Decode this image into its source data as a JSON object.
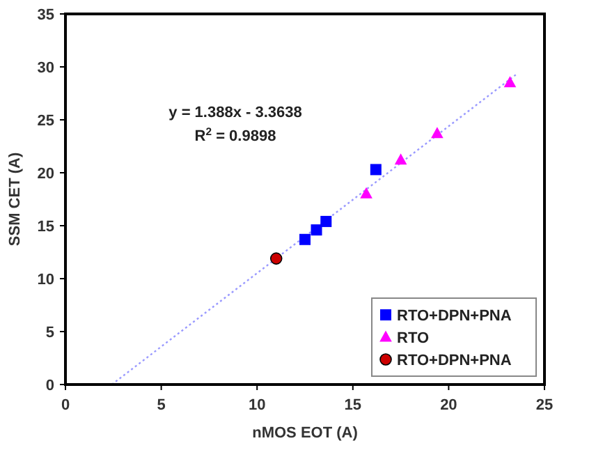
{
  "chart_data": {
    "type": "scatter",
    "xlabel": "nMOS EOT (A)",
    "ylabel": "SSM CET (A)",
    "xlim": [
      0,
      25
    ],
    "xticks": [
      0,
      5,
      10,
      15,
      20,
      25
    ],
    "ylim": [
      0,
      35
    ],
    "yticks": [
      0,
      5,
      10,
      15,
      20,
      25,
      30,
      35
    ],
    "grid": false,
    "legend": "bottom right",
    "annotations": [
      "y = 1.388x - 3.3638",
      "R$^{2}$ = 0.9898"
    ],
    "series": [
      {
        "type": "line",
        "color": "#9999ff",
        "line_style": "dotted",
        "marker": "none",
        "x": [
          2.42,
          23.5
        ],
        "values": [
          0,
          29.25
        ]
      },
      {
        "name": "RTO+DPN+PNA",
        "color": "#0000ff",
        "marker": "square",
        "x": [
          12.5,
          13.1,
          13.6,
          16.2
        ],
        "values": [
          13.7,
          14.6,
          15.4,
          20.3
        ]
      },
      {
        "name": "RTO",
        "color": "#ff00ff",
        "marker": "triangle",
        "x": [
          15.7,
          17.5,
          19.4,
          23.2
        ],
        "values": [
          18.0,
          21.2,
          23.7,
          28.5
        ]
      },
      {
        "name": "RTO+DPN+PNA",
        "color": "#cc0000",
        "marker": "circle",
        "x": [
          11.0
        ],
        "values": [
          11.9
        ]
      }
    ]
  }
}
